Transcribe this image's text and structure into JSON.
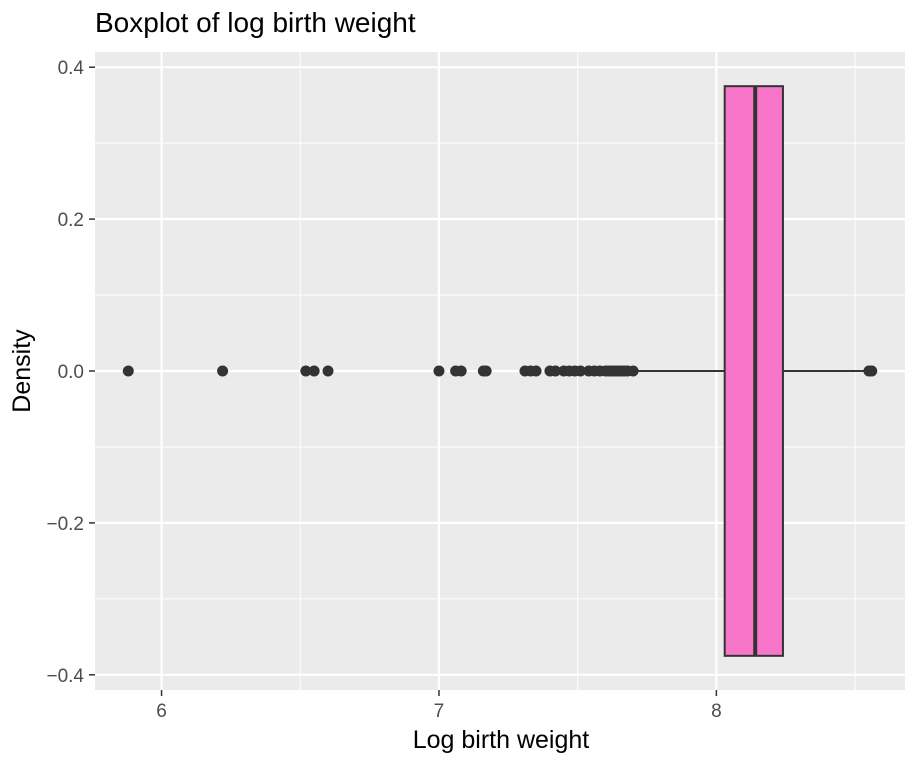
{
  "chart_data": {
    "type": "boxplot",
    "title": "Boxplot of log birth weight",
    "xlabel": "Log birth weight",
    "ylabel": "Density",
    "xlim": [
      5.76,
      8.68
    ],
    "ylim": [
      -0.42,
      0.42
    ],
    "x_ticks": [
      {
        "value": 6,
        "label": "6"
      },
      {
        "value": 7,
        "label": "7"
      },
      {
        "value": 8,
        "label": "8"
      }
    ],
    "y_ticks": [
      {
        "value": 0.4,
        "label": "0.4"
      },
      {
        "value": 0.2,
        "label": "0.2"
      },
      {
        "value": 0.0,
        "label": "0.0"
      },
      {
        "value": -0.2,
        "label": "−0.2"
      },
      {
        "value": -0.4,
        "label": "−0.4"
      }
    ],
    "x_minor_gridlines": [
      6.5,
      7.5,
      8.5
    ],
    "y_minor_gridlines": [
      0.3,
      0.1,
      -0.1,
      -0.3
    ],
    "box": {
      "y_center": 0,
      "half_width": 0.375,
      "whisker_low": 7.71,
      "q1": 8.03,
      "median": 8.14,
      "q3": 8.24,
      "whisker_high": 8.55,
      "fill": "#f776c9",
      "outline": "#333333"
    },
    "outliers": [
      5.88,
      6.22,
      6.52,
      6.55,
      6.6,
      7.0,
      7.06,
      7.08,
      7.16,
      7.17,
      7.31,
      7.33,
      7.35,
      7.4,
      7.42,
      7.45,
      7.47,
      7.49,
      7.51,
      7.54,
      7.56,
      7.58,
      7.6,
      7.61,
      7.62,
      7.63,
      7.64,
      7.65,
      7.66,
      7.67,
      7.68,
      7.7,
      8.55,
      8.56
    ],
    "grid": true,
    "panel_background": "#ebebeb",
    "gridline_color": "#ffffff",
    "point_color": "#333333"
  }
}
